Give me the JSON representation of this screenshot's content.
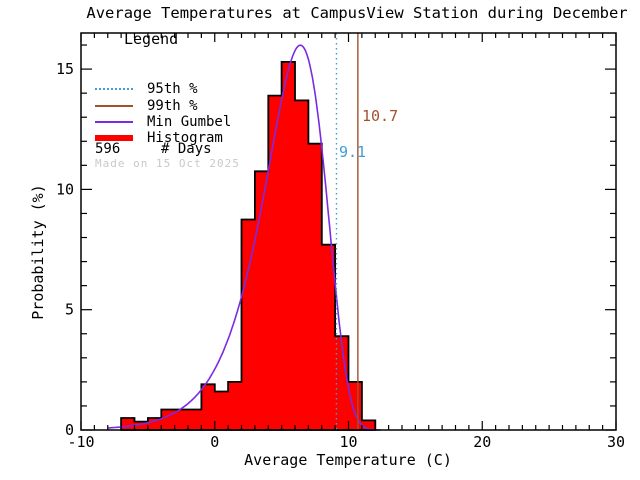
{
  "legend": {
    "title": "Legend",
    "items": [
      {
        "label": "95th %",
        "color": "#3e9fd6",
        "style": "dotted"
      },
      {
        "label": "99th %",
        "color": "#a0522d",
        "style": "solid"
      },
      {
        "label": "Min Gumbel",
        "color": "#7b2be0",
        "style": "solid"
      },
      {
        "label": "Histogram",
        "color": "#ff0000",
        "style": "thick"
      }
    ],
    "days_value": "596",
    "days_label": "# Days",
    "watermark": "Made on 15 Oct 2025"
  },
  "chart_data": {
    "type": "bar",
    "subtype": "histogram-with-fit",
    "title": "Average Temperatures at CampusView Station during December",
    "xlabel": "Average Temperature (C)",
    "ylabel": "Probability (%)",
    "xlim": [
      -10,
      30
    ],
    "ylim": [
      0,
      16.5
    ],
    "x_ticks": [
      -10,
      0,
      10,
      20,
      30
    ],
    "y_ticks": [
      0,
      5,
      10,
      15
    ],
    "minor_tick_step_x": 1,
    "minor_tick_step_y": 1,
    "grid": false,
    "legend_position": "upper-left",
    "n_days": 596,
    "bin_width": 1,
    "bin_left_edges": [
      -7,
      -6,
      -5,
      -4,
      -3,
      -2,
      -1,
      0,
      1,
      2,
      3,
      4,
      5,
      6,
      7,
      8,
      9,
      10,
      11
    ],
    "bin_heights_pct": [
      0.5,
      0.35,
      0.5,
      0.85,
      0.85,
      0.85,
      1.9,
      1.6,
      2.0,
      8.75,
      10.75,
      13.9,
      15.3,
      13.7,
      11.9,
      7.7,
      3.9,
      2.0,
      0.4
    ],
    "histogram_color": "#ff0000",
    "histogram_outline": "#000000",
    "gumbel_fit": {
      "type": "min-gumbel",
      "mode_c": 6.4,
      "beta_c": 2.3,
      "peak_pct": 16.0,
      "x_start": -8,
      "x_end": 12.4,
      "color": "#7b2be0"
    },
    "percentiles": [
      {
        "name": "95th",
        "value": 9.1,
        "color": "#3e9fd6",
        "line_style": "dotted"
      },
      {
        "name": "99th",
        "value": 10.7,
        "color": "#a0522d",
        "line_style": "solid"
      }
    ]
  }
}
